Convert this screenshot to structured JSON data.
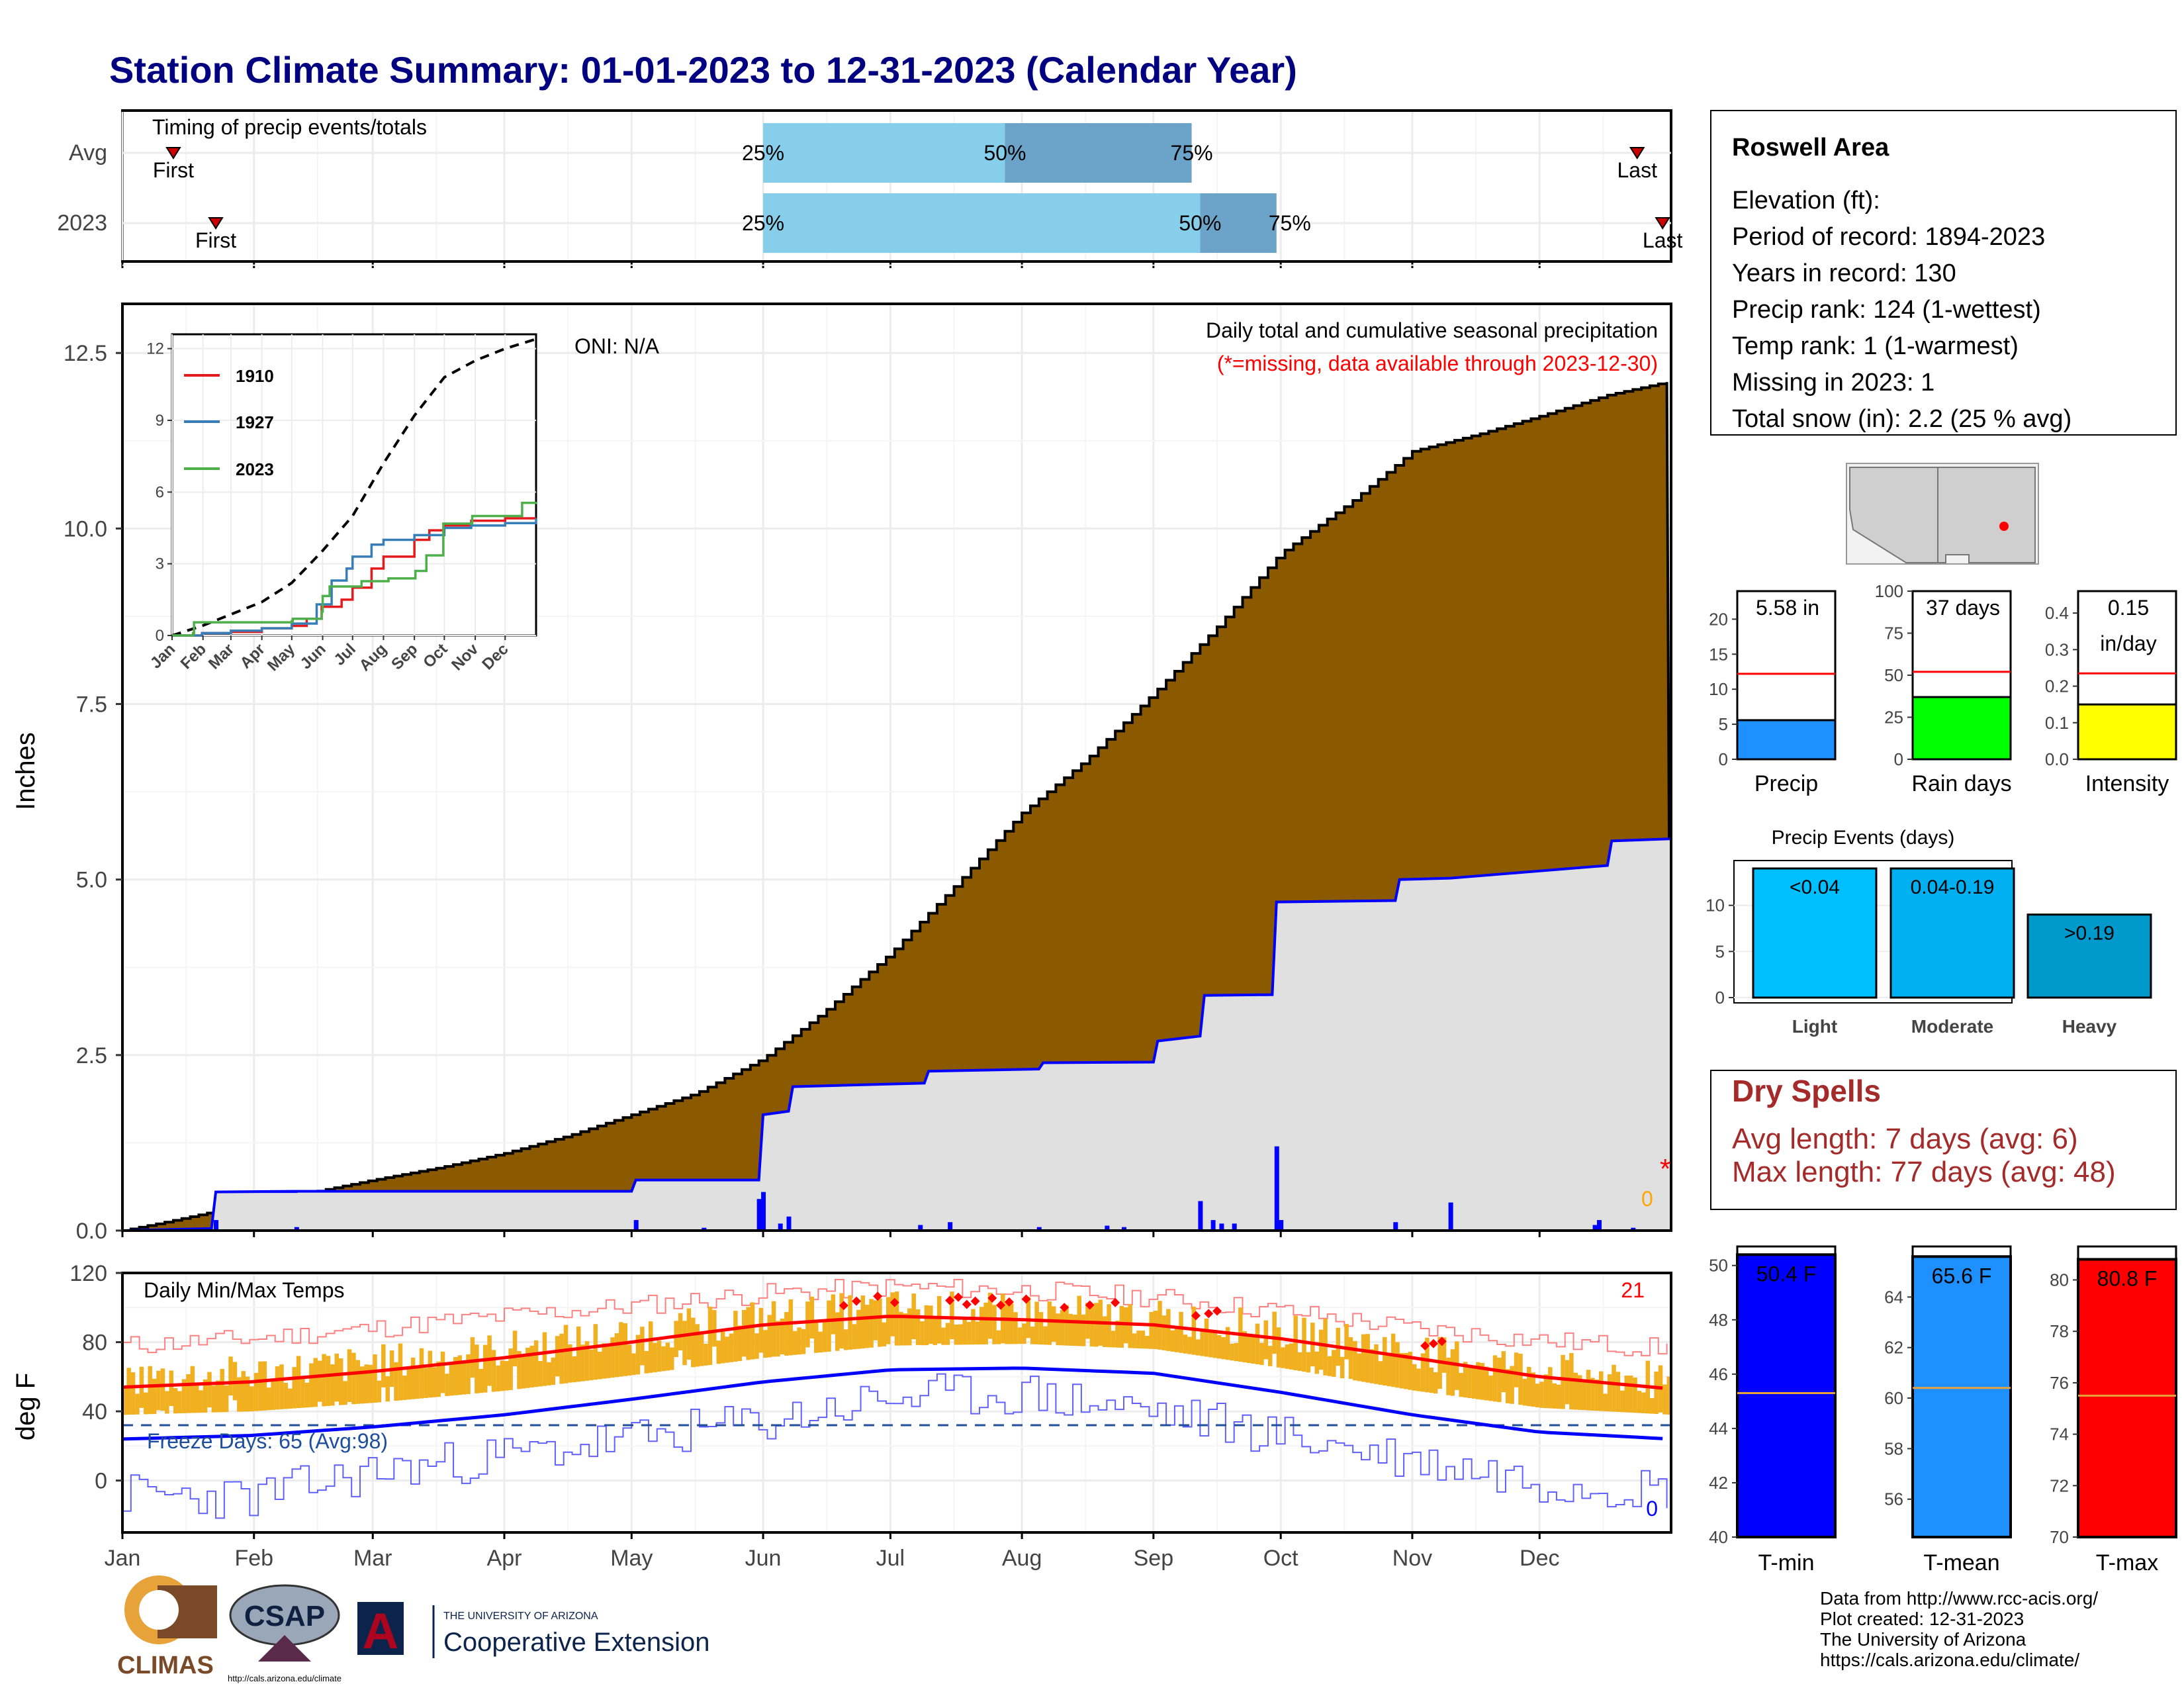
{
  "page": {
    "title": "Station Climate Summary: 01-01-2023 to 12-31-2023 (Calendar Year)"
  },
  "months": [
    "Jan",
    "Feb",
    "Mar",
    "Apr",
    "May",
    "Jun",
    "Jul",
    "Aug",
    "Sep",
    "Oct",
    "Nov",
    "Dec"
  ],
  "colors": {
    "title": "#000080",
    "precip_avg_fill": "#8B5A00",
    "precip_actual_fill": "#E0E0E0",
    "precip_line": "#0000FF",
    "temp_bars": "#F0B020",
    "temp_max_avg": "#FF0000",
    "temp_min_avg": "#0000FF",
    "freeze_line": "#1F4E9C",
    "dry_spells_text": "#A52A2A"
  },
  "timing": {
    "title": "Timing of precip events/totals",
    "y_tick_labels": [
      "Avg",
      "2023"
    ],
    "rows": [
      {
        "label": "Avg",
        "first_label": "First",
        "last_label": "Last",
        "first_doy": 12,
        "last_doy": 357,
        "p25_doy": 151,
        "p50_doy": 208,
        "p75_doy": 252,
        "p25_text": "25%",
        "p50_text": "50%",
        "p75_text": "75%"
      },
      {
        "label": "2023",
        "first_label": "First",
        "last_label": "Last",
        "first_doy": 22,
        "last_doy": 363,
        "p25_doy": 151,
        "p50_doy": 254,
        "p75_doy": 272,
        "p25_text": "25%",
        "p50_text": "50%",
        "p75_text": "75%"
      }
    ]
  },
  "precip_panel": {
    "caption_line1": "Daily total and cumulative seasonal precipitation",
    "caption_line2": "(*=missing, data available through 2023-12-30)",
    "oni": "ONI: N/A",
    "ylabel": "Inches",
    "missing_marker": "*",
    "missing_count": "0",
    "ylim": [
      0,
      13.2
    ],
    "y_ticks": [
      "0.0",
      "2.5",
      "5.0",
      "7.5",
      "10.0",
      "12.5"
    ],
    "avg_cum_points": [
      [
        0,
        0
      ],
      [
        10,
        0.12
      ],
      [
        20,
        0.25
      ],
      [
        31,
        0.42
      ],
      [
        45,
        0.55
      ],
      [
        59,
        0.72
      ],
      [
        75,
        0.9
      ],
      [
        90,
        1.1
      ],
      [
        105,
        1.35
      ],
      [
        120,
        1.65
      ],
      [
        135,
        1.95
      ],
      [
        151,
        2.45
      ],
      [
        165,
        3.1
      ],
      [
        181,
        3.95
      ],
      [
        196,
        4.9
      ],
      [
        212,
        5.95
      ],
      [
        227,
        6.7
      ],
      [
        243,
        7.65
      ],
      [
        258,
        8.6
      ],
      [
        273,
        9.65
      ],
      [
        290,
        10.4
      ],
      [
        304,
        11.1
      ],
      [
        320,
        11.35
      ],
      [
        334,
        11.6
      ],
      [
        350,
        11.9
      ],
      [
        365,
        12.1
      ]
    ],
    "actual_cum_points": [
      [
        0,
        0
      ],
      [
        21,
        0.03
      ],
      [
        22,
        0.55
      ],
      [
        40,
        0.56
      ],
      [
        120,
        0.56
      ],
      [
        121,
        0.72
      ],
      [
        150,
        0.72
      ],
      [
        151,
        1.65
      ],
      [
        157,
        1.7
      ],
      [
        158,
        2.05
      ],
      [
        189,
        2.1
      ],
      [
        190,
        2.27
      ],
      [
        216,
        2.3
      ],
      [
        217,
        2.39
      ],
      [
        243,
        2.4
      ],
      [
        244,
        2.7
      ],
      [
        254,
        2.77
      ],
      [
        255,
        3.35
      ],
      [
        271,
        3.36
      ],
      [
        272,
        4.68
      ],
      [
        300,
        4.7
      ],
      [
        301,
        5.0
      ],
      [
        313,
        5.02
      ],
      [
        350,
        5.2
      ],
      [
        351,
        5.55
      ],
      [
        365,
        5.58
      ]
    ],
    "daily_bars": [
      [
        22,
        0.15
      ],
      [
        41,
        0.05
      ],
      [
        121,
        0.15
      ],
      [
        137,
        0.04
      ],
      [
        150,
        0.45
      ],
      [
        151,
        0.55
      ],
      [
        155,
        0.1
      ],
      [
        157,
        0.2
      ],
      [
        188,
        0.08
      ],
      [
        195,
        0.12
      ],
      [
        216,
        0.05
      ],
      [
        232,
        0.07
      ],
      [
        236,
        0.05
      ],
      [
        254,
        0.42
      ],
      [
        257,
        0.15
      ],
      [
        259,
        0.1
      ],
      [
        262,
        0.1
      ],
      [
        272,
        1.2
      ],
      [
        273,
        0.15
      ],
      [
        300,
        0.12
      ],
      [
        313,
        0.4
      ],
      [
        347,
        0.08
      ],
      [
        348,
        0.15
      ],
      [
        356,
        0.04
      ]
    ]
  },
  "inset": {
    "y_ticks": [
      "0",
      "3",
      "6",
      "9",
      "12"
    ],
    "x_ticks": [
      "Jan",
      "Feb",
      "Mar",
      "Apr",
      "May",
      "Jun",
      "Jul",
      "Aug",
      "Sep",
      "Oct",
      "Nov",
      "Dec"
    ],
    "legend": [
      {
        "name": "1910",
        "color": "#E41A1C"
      },
      {
        "name": "1927",
        "color": "#377EB8"
      },
      {
        "name": "2023",
        "color": "#4DAF4A"
      }
    ],
    "avg_line": [
      [
        0,
        0
      ],
      [
        30,
        0.4
      ],
      [
        60,
        0.9
      ],
      [
        90,
        1.4
      ],
      [
        120,
        2.2
      ],
      [
        150,
        3.5
      ],
      [
        181,
        5.0
      ],
      [
        212,
        7.2
      ],
      [
        243,
        9.2
      ],
      [
        273,
        10.8
      ],
      [
        304,
        11.5
      ],
      [
        334,
        12.0
      ],
      [
        365,
        12.4
      ]
    ],
    "series_1910": [
      [
        0,
        0
      ],
      [
        30,
        0.1
      ],
      [
        59,
        0.15
      ],
      [
        90,
        0.3
      ],
      [
        120,
        0.4
      ],
      [
        135,
        0.7
      ],
      [
        150,
        1.2
      ],
      [
        170,
        1.5
      ],
      [
        181,
        2.0
      ],
      [
        200,
        2.8
      ],
      [
        212,
        3.3
      ],
      [
        243,
        4.0
      ],
      [
        258,
        4.4
      ],
      [
        273,
        4.6
      ],
      [
        300,
        4.8
      ],
      [
        334,
        4.9
      ],
      [
        365,
        4.9
      ]
    ],
    "series_1927": [
      [
        0,
        0
      ],
      [
        30,
        0.1
      ],
      [
        59,
        0.2
      ],
      [
        90,
        0.3
      ],
      [
        120,
        0.5
      ],
      [
        145,
        1.3
      ],
      [
        160,
        2.3
      ],
      [
        175,
        2.8
      ],
      [
        181,
        3.3
      ],
      [
        200,
        3.8
      ],
      [
        212,
        4.0
      ],
      [
        243,
        4.2
      ],
      [
        273,
        4.5
      ],
      [
        300,
        4.6
      ],
      [
        334,
        4.7
      ],
      [
        365,
        4.9
      ]
    ],
    "series_2023": [
      [
        0,
        0
      ],
      [
        21,
        0.1
      ],
      [
        22,
        0.55
      ],
      [
        120,
        0.6
      ],
      [
        121,
        0.7
      ],
      [
        150,
        1.0
      ],
      [
        151,
        1.65
      ],
      [
        158,
        2.05
      ],
      [
        190,
        2.27
      ],
      [
        217,
        2.39
      ],
      [
        244,
        2.7
      ],
      [
        255,
        3.35
      ],
      [
        272,
        4.68
      ],
      [
        301,
        5.0
      ],
      [
        351,
        5.55
      ],
      [
        365,
        5.58
      ]
    ]
  },
  "temp_panel": {
    "title": "Daily Min/Max Temps",
    "ylabel": "deg F",
    "ylim": [
      -30,
      120
    ],
    "y_ticks": [
      "0",
      "40",
      "80",
      "120"
    ],
    "hot_days_count": "21",
    "cold_days_count": "0",
    "freeze_text": "Freeze Days: 65 (Avg:98)",
    "freeze_level": 32,
    "avg_max_points": [
      [
        0,
        54
      ],
      [
        30,
        57
      ],
      [
        59,
        63
      ],
      [
        90,
        71
      ],
      [
        120,
        80
      ],
      [
        151,
        90
      ],
      [
        181,
        95
      ],
      [
        212,
        93
      ],
      [
        243,
        90
      ],
      [
        273,
        82
      ],
      [
        304,
        71
      ],
      [
        334,
        60
      ],
      [
        365,
        53
      ]
    ],
    "avg_min_points": [
      [
        0,
        24
      ],
      [
        30,
        26
      ],
      [
        59,
        31
      ],
      [
        90,
        38
      ],
      [
        120,
        47
      ],
      [
        151,
        57
      ],
      [
        181,
        64
      ],
      [
        212,
        65
      ],
      [
        243,
        62
      ],
      [
        273,
        51
      ],
      [
        304,
        38
      ],
      [
        334,
        28
      ],
      [
        365,
        24
      ]
    ],
    "rec_max_points": [
      [
        0,
        78
      ],
      [
        30,
        82
      ],
      [
        59,
        88
      ],
      [
        90,
        95
      ],
      [
        120,
        101
      ],
      [
        151,
        108
      ],
      [
        181,
        112
      ],
      [
        212,
        110
      ],
      [
        243,
        106
      ],
      [
        273,
        98
      ],
      [
        304,
        88
      ],
      [
        334,
        81
      ],
      [
        365,
        76
      ]
    ],
    "rec_min_points": [
      [
        0,
        -8
      ],
      [
        30,
        -10
      ],
      [
        59,
        5
      ],
      [
        90,
        14
      ],
      [
        120,
        24
      ],
      [
        151,
        34
      ],
      [
        181,
        48
      ],
      [
        212,
        50
      ],
      [
        243,
        40
      ],
      [
        273,
        26
      ],
      [
        304,
        12
      ],
      [
        334,
        0
      ],
      [
        365,
        -5
      ]
    ]
  },
  "station": {
    "name": "Roswell Area",
    "lines": [
      "Elevation (ft):",
      "Period of record: 1894-2023",
      "Years in record: 130",
      "Precip rank: 124 (1-wettest)",
      "Temp rank: 1 (1-warmest)",
      "Missing in 2023: 1",
      "Total snow (in): 2.2 (25 % avg)"
    ]
  },
  "mini_bars": [
    {
      "label": "Precip",
      "value_text": "5.58 in",
      "value_text2": "",
      "value": 5.58,
      "avg": 12.2,
      "ymax": 24,
      "ticks": [
        "0",
        "5",
        "10",
        "15",
        "20"
      ],
      "tick_vals": [
        0,
        5,
        10,
        15,
        20
      ],
      "color": "#1E90FF"
    },
    {
      "label": "Rain days",
      "value_text": "37 days",
      "value_text2": "",
      "value": 37,
      "avg": 52,
      "ymax": 100,
      "ticks": [
        "0",
        "25",
        "50",
        "75",
        "100"
      ],
      "tick_vals": [
        0,
        25,
        50,
        75,
        100
      ],
      "color": "#00FF00"
    },
    {
      "label": "Intensity",
      "value_text": "0.15",
      "value_text2": "in/day",
      "value": 0.15,
      "avg": 0.235,
      "ymax": 0.46,
      "ticks": [
        "0.0",
        "0.1",
        "0.2",
        "0.3",
        "0.4"
      ],
      "tick_vals": [
        0,
        0.1,
        0.2,
        0.3,
        0.4
      ],
      "color": "#FFFF00"
    }
  ],
  "precip_events": {
    "title": "Precip Events (days)",
    "y_ticks": [
      "0",
      "5",
      "10"
    ],
    "bars": [
      {
        "category": "Light",
        "label": "<0.04",
        "value": 14,
        "color": "#00BFFF"
      },
      {
        "category": "Moderate",
        "label": "0.04-0.19",
        "value": 14,
        "color": "#00B0F0"
      },
      {
        "category": "Heavy",
        "label": ">0.19",
        "value": 9,
        "color": "#0099CC"
      }
    ]
  },
  "dry_spells": {
    "title": "Dry Spells",
    "line1": "Avg length: 7 days (avg: 6)",
    "line2": "Max length: 77 days (avg: 48)"
  },
  "temp_bars": [
    {
      "label": "T-min",
      "value_text": "50.4 F",
      "value": 50.4,
      "avg": 45.3,
      "ymin": 40,
      "ymax": 50.7,
      "ticks": [
        "40",
        "42",
        "44",
        "46",
        "48",
        "50"
      ],
      "tick_vals": [
        40,
        42,
        44,
        46,
        48,
        50
      ],
      "color": "#0000FF"
    },
    {
      "label": "T-mean",
      "value_text": "65.6 F",
      "value": 65.6,
      "avg": 60.4,
      "ymin": 54.5,
      "ymax": 66,
      "ticks": [
        "56",
        "58",
        "60",
        "62",
        "64"
      ],
      "tick_vals": [
        56,
        58,
        60,
        62,
        64
      ],
      "color": "#1E90FF"
    },
    {
      "label": "T-max",
      "value_text": "80.8 F",
      "value": 80.8,
      "avg": 75.5,
      "ymin": 70,
      "ymax": 81.3,
      "ticks": [
        "70",
        "72",
        "74",
        "76",
        "78",
        "80"
      ],
      "tick_vals": [
        70,
        72,
        74,
        76,
        78,
        80
      ],
      "color": "#FF0000"
    }
  ],
  "footer": {
    "credit_lines": [
      "Data from http://www.rcc-acis.org/",
      "Plot created: 12-31-2023",
      "The University of Arizona",
      "https://cals.arizona.edu/climate/"
    ],
    "climas_text": "CLIMAS",
    "csap_text": "CSAP",
    "csap_url": "http://cals.arizona.edu/climate",
    "ua_small": "THE UNIVERSITY OF ARIZONA",
    "ua_big": "Cooperative Extension",
    "ua_logo_letter": "A"
  },
  "chart_data": [
    {
      "type": "bar",
      "title": "Timing of precip events/totals",
      "categories": [
        "Avg",
        "2023"
      ],
      "series": [
        {
          "name": "First",
          "values": [
            12,
            22
          ]
        },
        {
          "name": "25%",
          "values": [
            151,
            151
          ]
        },
        {
          "name": "50%",
          "values": [
            208,
            254
          ]
        },
        {
          "name": "75%",
          "values": [
            252,
            272
          ]
        },
        {
          "name": "Last",
          "values": [
            357,
            363
          ]
        }
      ]
    },
    {
      "type": "area",
      "title": "Daily total and cumulative seasonal precipitation",
      "xlabel": "",
      "ylabel": "Inches",
      "ylim": [
        0,
        13.2
      ],
      "x": [
        "Jan",
        "Feb",
        "Mar",
        "Apr",
        "May",
        "Jun",
        "Jul",
        "Aug",
        "Sep",
        "Oct",
        "Nov",
        "Dec"
      ],
      "series": []
    },
    {
      "type": "line",
      "title": "Daily Min/Max Temps",
      "ylabel": "deg F",
      "ylim": [
        -30,
        120
      ]
    },
    {
      "type": "bar",
      "categories": [
        "Precip",
        "Rain days",
        "Intensity"
      ],
      "values": [
        5.58,
        37,
        0.15
      ]
    },
    {
      "type": "bar",
      "title": "Precip Events (days)",
      "categories": [
        "Light",
        "Moderate",
        "Heavy"
      ],
      "values": [
        14,
        14,
        9
      ]
    },
    {
      "type": "bar",
      "categories": [
        "T-min",
        "T-mean",
        "T-max"
      ],
      "values": [
        50.4,
        65.6,
        80.8
      ]
    }
  ]
}
